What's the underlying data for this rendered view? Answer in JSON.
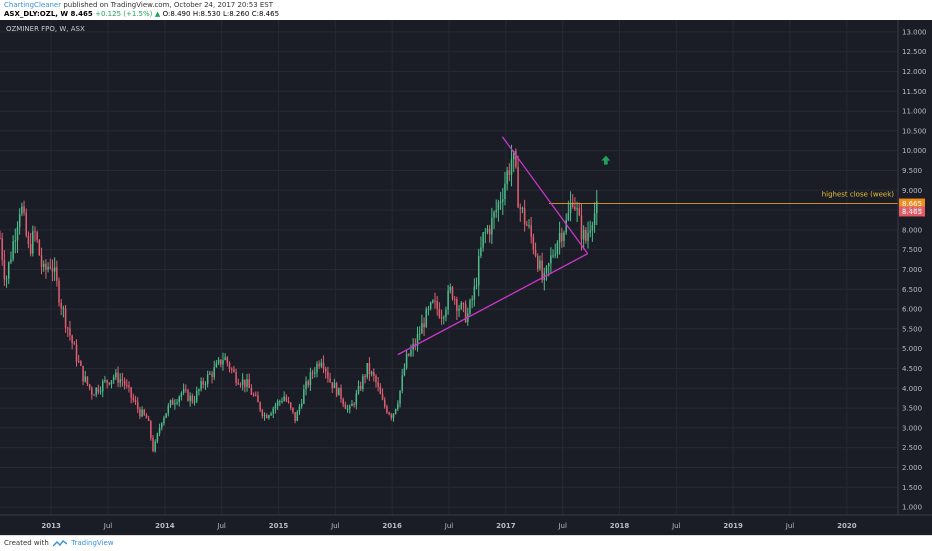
{
  "header": {
    "author": "ChartingCleaner",
    "published_text": " published on TradingView.com, October 24, 2017 20:53 EST",
    "symbol": "ASX_DLY:OZL, W",
    "last": "8.465",
    "change": "+0.125 (+1.5%)",
    "open": "O:8.490",
    "high": "H:8.530",
    "low": "L:8.260",
    "close": "C:8.465"
  },
  "chart_title": "OZMINER FPO, W, ASX",
  "footer": {
    "created_with": "Created with",
    "brand": "TradingView"
  },
  "colors": {
    "background": "#1b1d26",
    "up": "#4dbd8a",
    "down": "#e06072",
    "trendline": "#c936c9",
    "highest_close_line": "#e0a030",
    "highest_close_badge": "#f08c1c",
    "last_price_badge": "#e45a63",
    "arrow": "#21a35b"
  },
  "chart_data": {
    "type": "candlestick",
    "interval": "W",
    "ylim": [
      0.8,
      13.3
    ],
    "y_ticks": [
      "1.000",
      "1.500",
      "2.000",
      "2.500",
      "3.000",
      "3.500",
      "4.000",
      "4.500",
      "5.000",
      "5.500",
      "6.000",
      "6.500",
      "7.000",
      "7.500",
      "8.000",
      "8.500",
      "9.000",
      "9.500",
      "10.000",
      "10.500",
      "11.000",
      "11.500",
      "12.000",
      "12.500",
      "13.000"
    ],
    "x_ticks": [
      "2013",
      "Jul",
      "2014",
      "Jul",
      "2015",
      "Jul",
      "2016",
      "Jul",
      "2017",
      "Jul",
      "2018",
      "Jul",
      "2019",
      "Jul",
      "2020"
    ],
    "x_start": 2012.55,
    "x_end": 2020.45,
    "last_price": "8.465",
    "highest_close": {
      "value": 8.665,
      "label": "highest close (week)",
      "price": "8.665",
      "from": 2017.38
    },
    "triangle": {
      "upper": [
        [
          2016.97,
          10.35
        ],
        [
          2017.72,
          7.4
        ]
      ],
      "lower": [
        [
          2016.05,
          4.85
        ],
        [
          2017.72,
          7.4
        ]
      ],
      "apex": [
        2017.72,
        7.4
      ]
    },
    "arrow_marker": {
      "x": 2017.88,
      "y": 9.75
    },
    "price_path": [
      [
        2012.55,
        7.8
      ],
      [
        2012.6,
        6.7
      ],
      [
        2012.66,
        7.6
      ],
      [
        2012.73,
        8.7
      ],
      [
        2012.8,
        7.5
      ],
      [
        2012.86,
        7.9
      ],
      [
        2012.93,
        6.9
      ],
      [
        2013.0,
        7.2
      ],
      [
        2013.1,
        6.0
      ],
      [
        2013.2,
        5.0
      ],
      [
        2013.28,
        4.3
      ],
      [
        2013.36,
        3.9
      ],
      [
        2013.45,
        4.1
      ],
      [
        2013.55,
        4.3
      ],
      [
        2013.63,
        4.2
      ],
      [
        2013.7,
        3.8
      ],
      [
        2013.78,
        3.4
      ],
      [
        2013.85,
        3.2
      ],
      [
        2013.9,
        2.4
      ],
      [
        2013.97,
        3.2
      ],
      [
        2014.05,
        3.6
      ],
      [
        2014.15,
        3.9
      ],
      [
        2014.25,
        3.7
      ],
      [
        2014.35,
        4.2
      ],
      [
        2014.45,
        4.5
      ],
      [
        2014.52,
        4.8
      ],
      [
        2014.62,
        4.3
      ],
      [
        2014.72,
        4.1
      ],
      [
        2014.8,
        3.7
      ],
      [
        2014.88,
        3.3
      ],
      [
        2014.95,
        3.5
      ],
      [
        2015.05,
        3.8
      ],
      [
        2015.15,
        3.2
      ],
      [
        2015.22,
        3.9
      ],
      [
        2015.3,
        4.4
      ],
      [
        2015.38,
        4.8
      ],
      [
        2015.45,
        4.2
      ],
      [
        2015.55,
        3.8
      ],
      [
        2015.62,
        3.4
      ],
      [
        2015.7,
        3.9
      ],
      [
        2015.78,
        4.5
      ],
      [
        2015.85,
        4.2
      ],
      [
        2015.92,
        3.6
      ],
      [
        2016.0,
        3.3
      ],
      [
        2016.06,
        3.8
      ],
      [
        2016.12,
        4.7
      ],
      [
        2016.2,
        5.1
      ],
      [
        2016.28,
        5.7
      ],
      [
        2016.36,
        6.1
      ],
      [
        2016.44,
        5.9
      ],
      [
        2016.52,
        6.5
      ],
      [
        2016.58,
        6.1
      ],
      [
        2016.66,
        5.8
      ],
      [
        2016.72,
        6.4
      ],
      [
        2016.8,
        7.8
      ],
      [
        2016.88,
        8.2
      ],
      [
        2016.94,
        8.7
      ],
      [
        2017.0,
        9.3
      ],
      [
        2017.06,
        9.9
      ],
      [
        2017.12,
        8.6
      ],
      [
        2017.2,
        8.0
      ],
      [
        2017.27,
        7.4
      ],
      [
        2017.33,
        6.6
      ],
      [
        2017.4,
        7.3
      ],
      [
        2017.47,
        7.9
      ],
      [
        2017.54,
        8.2
      ],
      [
        2017.59,
        8.9
      ],
      [
        2017.65,
        8.1
      ],
      [
        2017.7,
        7.7
      ],
      [
        2017.76,
        8.4
      ],
      [
        2017.8,
        8.465
      ]
    ]
  }
}
